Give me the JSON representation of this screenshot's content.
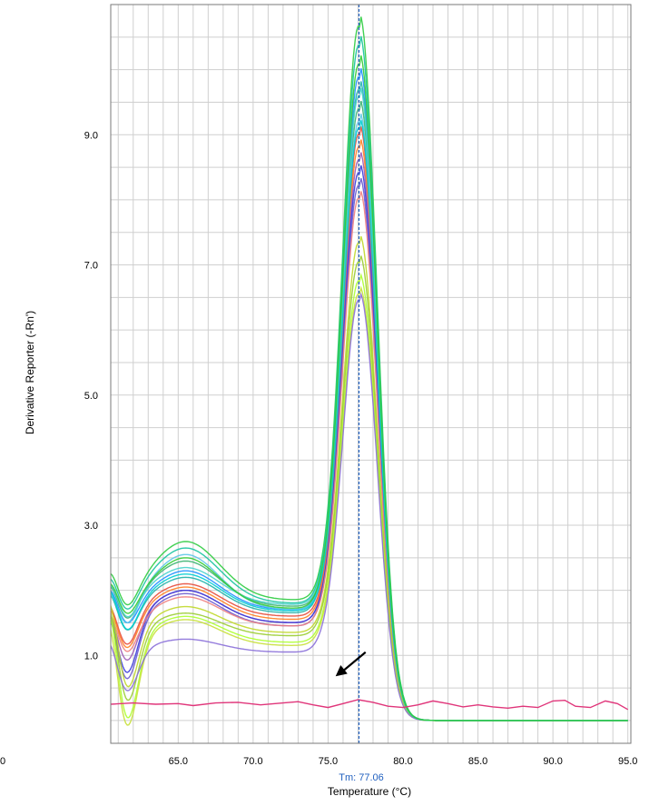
{
  "chart_data": {
    "type": "line",
    "title": "",
    "xlabel": "Temperature (°C)",
    "ylabel": "Derivative Reporter (-Rn')",
    "xlim": [
      60.5,
      95.2
    ],
    "ylim": [
      -0.35,
      11.0
    ],
    "x_ticks": [
      65,
      70,
      75,
      80,
      85,
      90,
      95
    ],
    "x_tick_labels": [
      "65.0",
      "70.0",
      "75.0",
      "80.0",
      "85.0",
      "90.0",
      "95.0"
    ],
    "y_ticks": [
      1,
      3,
      5,
      7,
      9
    ],
    "y_tick_labels": [
      "1.0",
      "3.0",
      "5.0",
      "7.0",
      "9.0"
    ],
    "clipped_x_tick_label": "0",
    "grid": true,
    "legend": "none",
    "tm_marker": {
      "x": 77.06,
      "label": "Tm: 77.06",
      "color": "#1f5fbf"
    },
    "annotation_arrow": {
      "from": [
        77.5,
        1.05
      ],
      "to": [
        75.5,
        0.68
      ],
      "color": "#000000"
    },
    "peak_center": 77.1,
    "shoulder_center": 65.5,
    "series": [
      {
        "color": "#2ecc40",
        "peak": 10.9,
        "shoulder": 2.75,
        "plateau": 1.85,
        "start": 2.3,
        "dip": 1.5
      },
      {
        "color": "#17c3a0",
        "peak": 10.6,
        "shoulder": 2.65,
        "plateau": 1.8,
        "start": 2.2,
        "dip": 1.45
      },
      {
        "color": "#1e90ff",
        "peak": 10.1,
        "shoulder": 2.3,
        "plateau": 1.7,
        "start": 2.0,
        "dip": 1.3
      },
      {
        "color": "#20b2aa",
        "peak": 9.9,
        "shoulder": 2.2,
        "plateau": 1.65,
        "start": 1.9,
        "dip": 1.2
      },
      {
        "color": "#3cb371",
        "peak": 9.6,
        "shoulder": 2.45,
        "plateau": 1.75,
        "start": 2.05,
        "dip": 1.35
      },
      {
        "color": "#5dc8e8",
        "peak": 9.4,
        "shoulder": 2.55,
        "plateau": 1.7,
        "start": 1.85,
        "dip": 1.25
      },
      {
        "color": "#e74c3c",
        "peak": 9.2,
        "shoulder": 2.1,
        "plateau": 1.6,
        "start": 1.6,
        "dip": 1.0
      },
      {
        "color": "#ff7f24",
        "peak": 9.0,
        "shoulder": 2.05,
        "plateau": 1.55,
        "start": 1.55,
        "dip": 0.95
      },
      {
        "color": "#9b59b6",
        "peak": 8.8,
        "shoulder": 2.0,
        "plateau": 1.5,
        "start": 1.4,
        "dip": 0.75
      },
      {
        "color": "#3b3bdb",
        "peak": 8.6,
        "shoulder": 2.0,
        "plateau": 1.5,
        "start": 1.3,
        "dip": 0.55
      },
      {
        "color": "#6a5acd",
        "peak": 8.4,
        "shoulder": 1.95,
        "plateau": 1.45,
        "start": 1.25,
        "dip": 0.45
      },
      {
        "color": "#f08080",
        "peak": 8.2,
        "shoulder": 1.9,
        "plateau": 1.45,
        "start": 1.5,
        "dip": 0.9
      },
      {
        "color": "#c0d82a",
        "peak": 7.5,
        "shoulder": 1.75,
        "plateau": 1.35,
        "start": 1.7,
        "dip": 0.3
      },
      {
        "color": "#9acd32",
        "peak": 7.2,
        "shoulder": 1.65,
        "plateau": 1.3,
        "start": 1.5,
        "dip": 0.1
      },
      {
        "color": "#adff2f",
        "peak": 6.9,
        "shoulder": 1.6,
        "plateau": 1.2,
        "start": 1.4,
        "dip": -0.2
      },
      {
        "color": "#c8e03a",
        "peak": 6.7,
        "shoulder": 1.55,
        "plateau": 1.15,
        "start": 1.1,
        "dip": -0.3
      },
      {
        "color": "#8a6fd9",
        "peak": 6.6,
        "shoulder": 1.25,
        "plateau": 1.05,
        "start": 1.0,
        "dip": 0.35
      },
      {
        "color": "#48d1cc",
        "peak": 9.8,
        "shoulder": 2.35,
        "plateau": 1.78,
        "start": 2.1,
        "dip": 1.4
      },
      {
        "color": "#00ced1",
        "peak": 9.3,
        "shoulder": 2.25,
        "plateau": 1.68,
        "start": 1.95,
        "dip": 1.2
      },
      {
        "color": "#32cd32",
        "peak": 10.3,
        "shoulder": 2.5,
        "plateau": 1.72,
        "start": 2.15,
        "dip": 1.4
      }
    ],
    "baseline_series": {
      "color": "#e0357a",
      "points": [
        [
          60.5,
          0.25
        ],
        [
          62.0,
          0.27
        ],
        [
          63.5,
          0.25
        ],
        [
          65.0,
          0.26
        ],
        [
          66.0,
          0.23
        ],
        [
          67.5,
          0.27
        ],
        [
          69.0,
          0.28
        ],
        [
          70.5,
          0.24
        ],
        [
          72.0,
          0.27
        ],
        [
          73.0,
          0.29
        ],
        [
          74.0,
          0.24
        ],
        [
          75.0,
          0.2
        ],
        [
          76.0,
          0.26
        ],
        [
          77.0,
          0.32
        ],
        [
          78.0,
          0.28
        ],
        [
          79.0,
          0.22
        ],
        [
          80.0,
          0.2
        ],
        [
          81.0,
          0.24
        ],
        [
          82.0,
          0.3
        ],
        [
          83.0,
          0.26
        ],
        [
          84.0,
          0.21
        ],
        [
          85.0,
          0.24
        ],
        [
          86.0,
          0.21
        ],
        [
          87.0,
          0.19
        ],
        [
          88.0,
          0.22
        ],
        [
          89.0,
          0.2
        ],
        [
          90.0,
          0.3
        ],
        [
          90.8,
          0.31
        ],
        [
          91.5,
          0.22
        ],
        [
          92.5,
          0.2
        ],
        [
          93.5,
          0.3
        ],
        [
          94.3,
          0.26
        ],
        [
          95.0,
          0.17
        ]
      ]
    }
  }
}
